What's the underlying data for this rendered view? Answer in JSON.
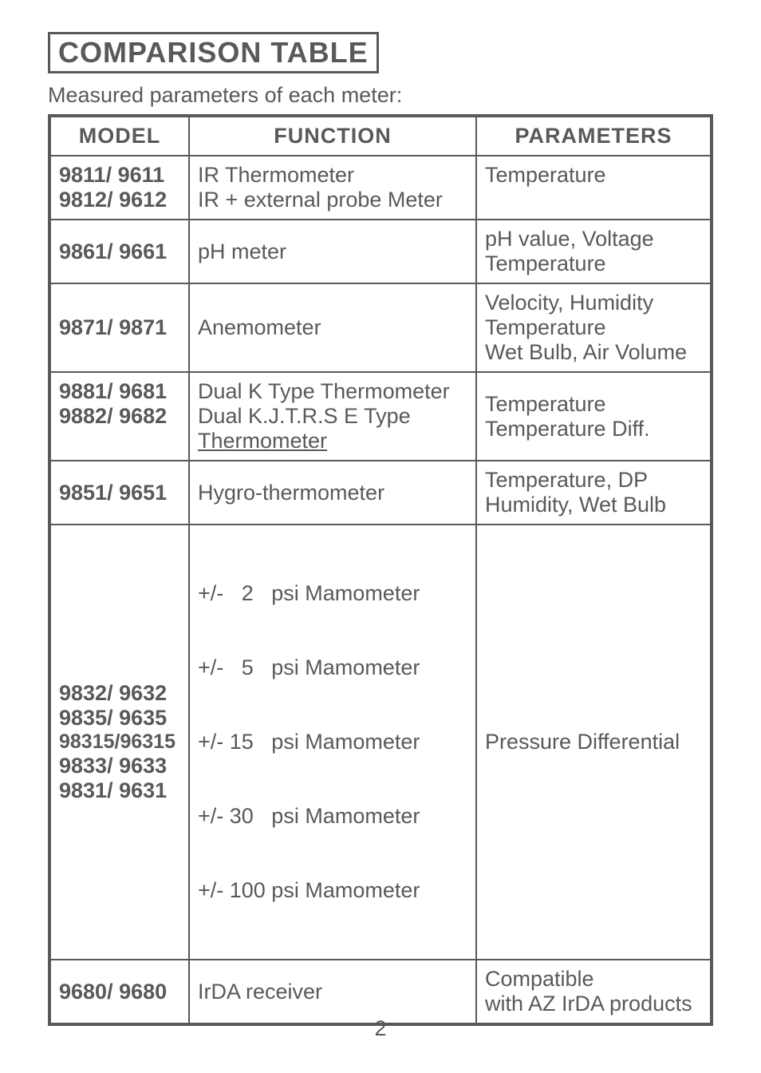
{
  "title": "COMPARISON TABLE",
  "subtitle": "Measured parameters of each meter:",
  "headers": {
    "model": "MODEL",
    "function": "FUNCTION",
    "parameters": "PARAMETERS"
  },
  "rows": [
    {
      "model_l1": "9811/ 9611",
      "model_l2": "9812/ 9612",
      "func_l1": "IR Thermometer",
      "func_l2": "IR + external probe Meter",
      "param_l1": "Temperature"
    },
    {
      "model_l1": "9861/ 9661",
      "func_l1": "pH meter",
      "param_l1": "pH value, Voltage",
      "param_l2": "Temperature"
    },
    {
      "model_l1": "9871/ 9871",
      "func_l1": "Anemometer",
      "param_l1": "Velocity, Humidity",
      "param_l2": "Temperature",
      "param_l3": "Wet Bulb, Air Volume"
    },
    {
      "model_l1": "9881/ 9681",
      "model_l2": "9882/ 9682",
      "func_l1": "Dual K Type Thermometer",
      "func_l2": "Dual K.J.T.R.S E Type",
      "func_l3": "Thermometer",
      "param_l1": "Temperature",
      "param_l2": "Temperature Diff."
    },
    {
      "model_l1": "9851/ 9651",
      "func_l1": "Hygro-thermometer",
      "param_l1": "Temperature, DP",
      "param_l2": "Humidity, Wet Bulb"
    },
    {
      "model_l1": "9832/ 9632",
      "model_l2": "9835/ 9635",
      "model_l3": "98315/96315",
      "model_l4": "9833/ 9633",
      "model_l5": "9831/ 9631",
      "func_l1": "+/-   2   psi Mamometer",
      "func_l2": "+/-   5   psi Mamometer",
      "func_l3": "+/- 15   psi Mamometer",
      "func_l4": "+/- 30   psi Mamometer",
      "func_l5": "+/- 100 psi Mamometer",
      "param_l1": "Pressure Differential"
    },
    {
      "model_l1": "9680/ 9680",
      "func_l1": "IrDA receiver",
      "param_l1": "Compatible",
      "param_l2": "with AZ IrDA products"
    }
  ],
  "page_number": "2",
  "colors": {
    "text": "#58595b",
    "bg": "#ffffff",
    "border": "#58595b"
  }
}
